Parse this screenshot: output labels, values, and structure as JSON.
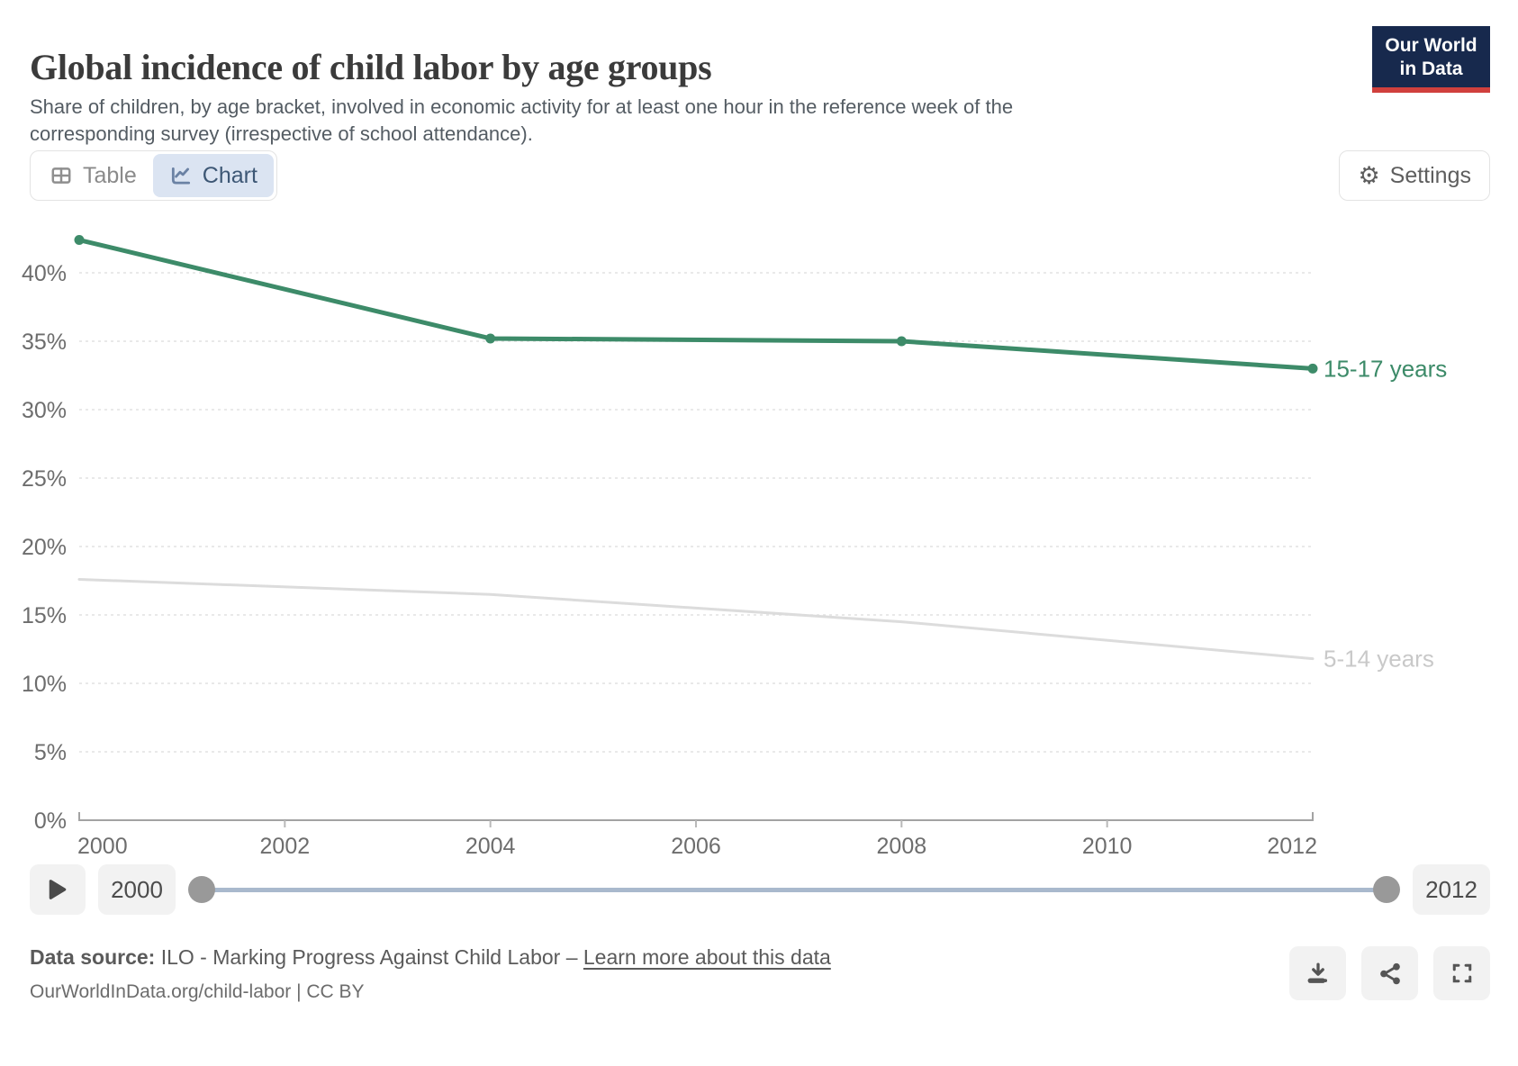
{
  "header": {
    "title": "Global incidence of child labor by age groups",
    "subtitle": "Share of children, by age bracket, involved in economic activity for at least one hour in the reference week of the corresponding survey (irrespective of school attendance).",
    "logo_line1": "Our World",
    "logo_line2": "in Data"
  },
  "toolbar": {
    "table": "Table",
    "chart": "Chart",
    "settings": "Settings"
  },
  "chart_data": {
    "type": "line",
    "title": "Global incidence of child labor by age groups",
    "x": [
      2000,
      2004,
      2008,
      2012
    ],
    "series": [
      {
        "name": "15-17 years",
        "values": [
          42.4,
          35.2,
          35.0,
          33.0
        ],
        "color": "#3d8b69",
        "emphasized": true
      },
      {
        "name": "5-14 years",
        "values": [
          17.6,
          16.5,
          14.5,
          11.8
        ],
        "color": "#dcdcdc",
        "label_color": "#c9c9c9",
        "emphasized": false
      }
    ],
    "xlim": [
      2000,
      2012
    ],
    "ylim": [
      0,
      44
    ],
    "yticks": [
      0,
      5,
      10,
      15,
      20,
      25,
      30,
      35,
      40
    ],
    "xticks": [
      2000,
      2002,
      2004,
      2006,
      2008,
      2010,
      2012
    ],
    "y_format": "percent",
    "grid": "horizontal-dashed",
    "legend_position": "end-of-line"
  },
  "timeline": {
    "start_year": "2000",
    "end_year": "2012"
  },
  "footer": {
    "source_label": "Data source:",
    "source_text": " ILO - Marking Progress Against Child Labor – ",
    "link_text": "Learn more about this data",
    "citation": "OurWorldInData.org/child-labor | CC BY"
  },
  "colors": {
    "accent_green": "#3d8b69",
    "faded_series": "#dcdcdc",
    "logo_navy": "#17294d",
    "logo_red": "#d0403d",
    "chart_tab_bg": "#dbe4f2",
    "slider_track": "#a9b9cd",
    "slider_handle": "#999999",
    "axis_label": "#6d6d6d",
    "gridline": "#e2e2e2"
  }
}
